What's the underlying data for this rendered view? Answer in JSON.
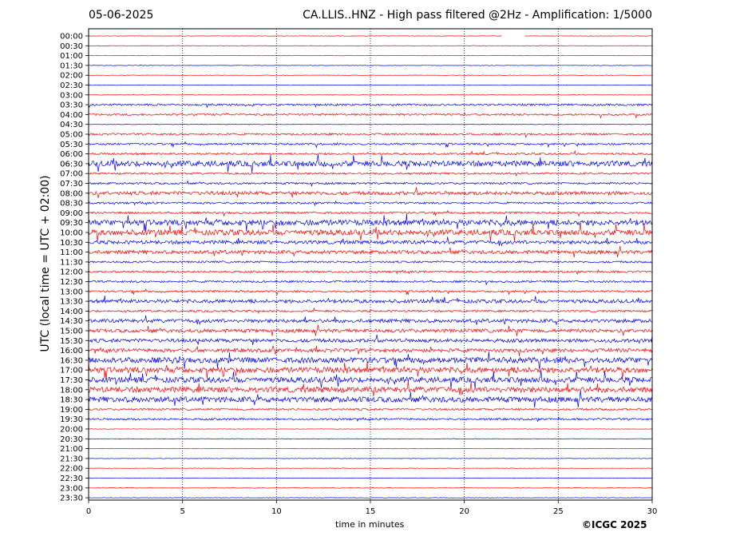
{
  "header": {
    "date": "05-06-2025",
    "title": "CA.LLIS..HNZ - High pass filtered @2Hz - Amplification: 1/5000"
  },
  "footer": {
    "xlabel": "time in minutes",
    "copyright": "©ICGC 2025"
  },
  "ylabel": "UTC (local time = UTC + 02:00)",
  "colors": {
    "red_trace": "#ff0000",
    "blue_trace": "#0000ff",
    "grid": "#000080",
    "axis": "#000000"
  },
  "chart_data": {
    "type": "line",
    "title": "CA.LLIS..HNZ - High pass filtered @2Hz - Amplification: 1/5000",
    "xlabel": "time in minutes",
    "ylabel": "UTC (local time = UTC + 02:00)",
    "xlim": [
      0,
      30
    ],
    "x_ticks": [
      "0",
      "5",
      "10",
      "15",
      "20",
      "25",
      "30"
    ],
    "vertical_grid_minutes": [
      5,
      10,
      15,
      20,
      25
    ],
    "grid": "dotted vertical",
    "rows": [
      "00:00",
      "00:30",
      "01:00",
      "01:30",
      "02:00",
      "02:30",
      "03:00",
      "03:30",
      "04:00",
      "04:30",
      "05:00",
      "05:30",
      "06:00",
      "06:30",
      "07:00",
      "07:30",
      "08:00",
      "08:30",
      "09:00",
      "09:30",
      "10:00",
      "10:30",
      "11:00",
      "11:30",
      "12:00",
      "12:30",
      "13:00",
      "13:30",
      "14:00",
      "14:30",
      "15:00",
      "15:30",
      "16:00",
      "16:30",
      "17:00",
      "17:30",
      "18:00",
      "18:30",
      "19:00",
      "19:30",
      "20:00",
      "20:30",
      "21:00",
      "21:30",
      "22:00",
      "22:30",
      "23:00",
      "23:30"
    ],
    "row_colors": [
      "red",
      "red",
      "red",
      "blue",
      "red",
      "blue",
      "red",
      "blue",
      "red",
      "blue",
      "red",
      "blue",
      "red",
      "blue",
      "red",
      "blue",
      "red",
      "blue",
      "red",
      "blue",
      "red",
      "blue",
      "red",
      "blue",
      "red",
      "blue",
      "red",
      "blue",
      "red",
      "blue",
      "red",
      "blue",
      "red",
      "blue",
      "red",
      "blue",
      "red",
      "blue",
      "red",
      "blue",
      "red",
      "blue",
      "red",
      "blue",
      "red",
      "blue",
      "red",
      "blue"
    ],
    "activity_level": [
      0,
      0,
      0,
      0,
      0,
      0,
      0,
      1,
      1,
      0,
      1,
      1,
      1,
      3,
      1,
      1,
      2,
      1,
      1,
      3,
      3,
      2,
      2,
      1,
      1,
      1,
      1,
      2,
      1,
      2,
      2,
      2,
      2,
      3,
      3,
      3,
      3,
      3,
      1,
      1,
      0,
      0,
      0,
      0,
      0,
      0,
      0,
      0
    ],
    "data_gaps_minutes": [
      {
        "row": "00:00",
        "from": 22.0,
        "to": 23.2
      }
    ]
  }
}
